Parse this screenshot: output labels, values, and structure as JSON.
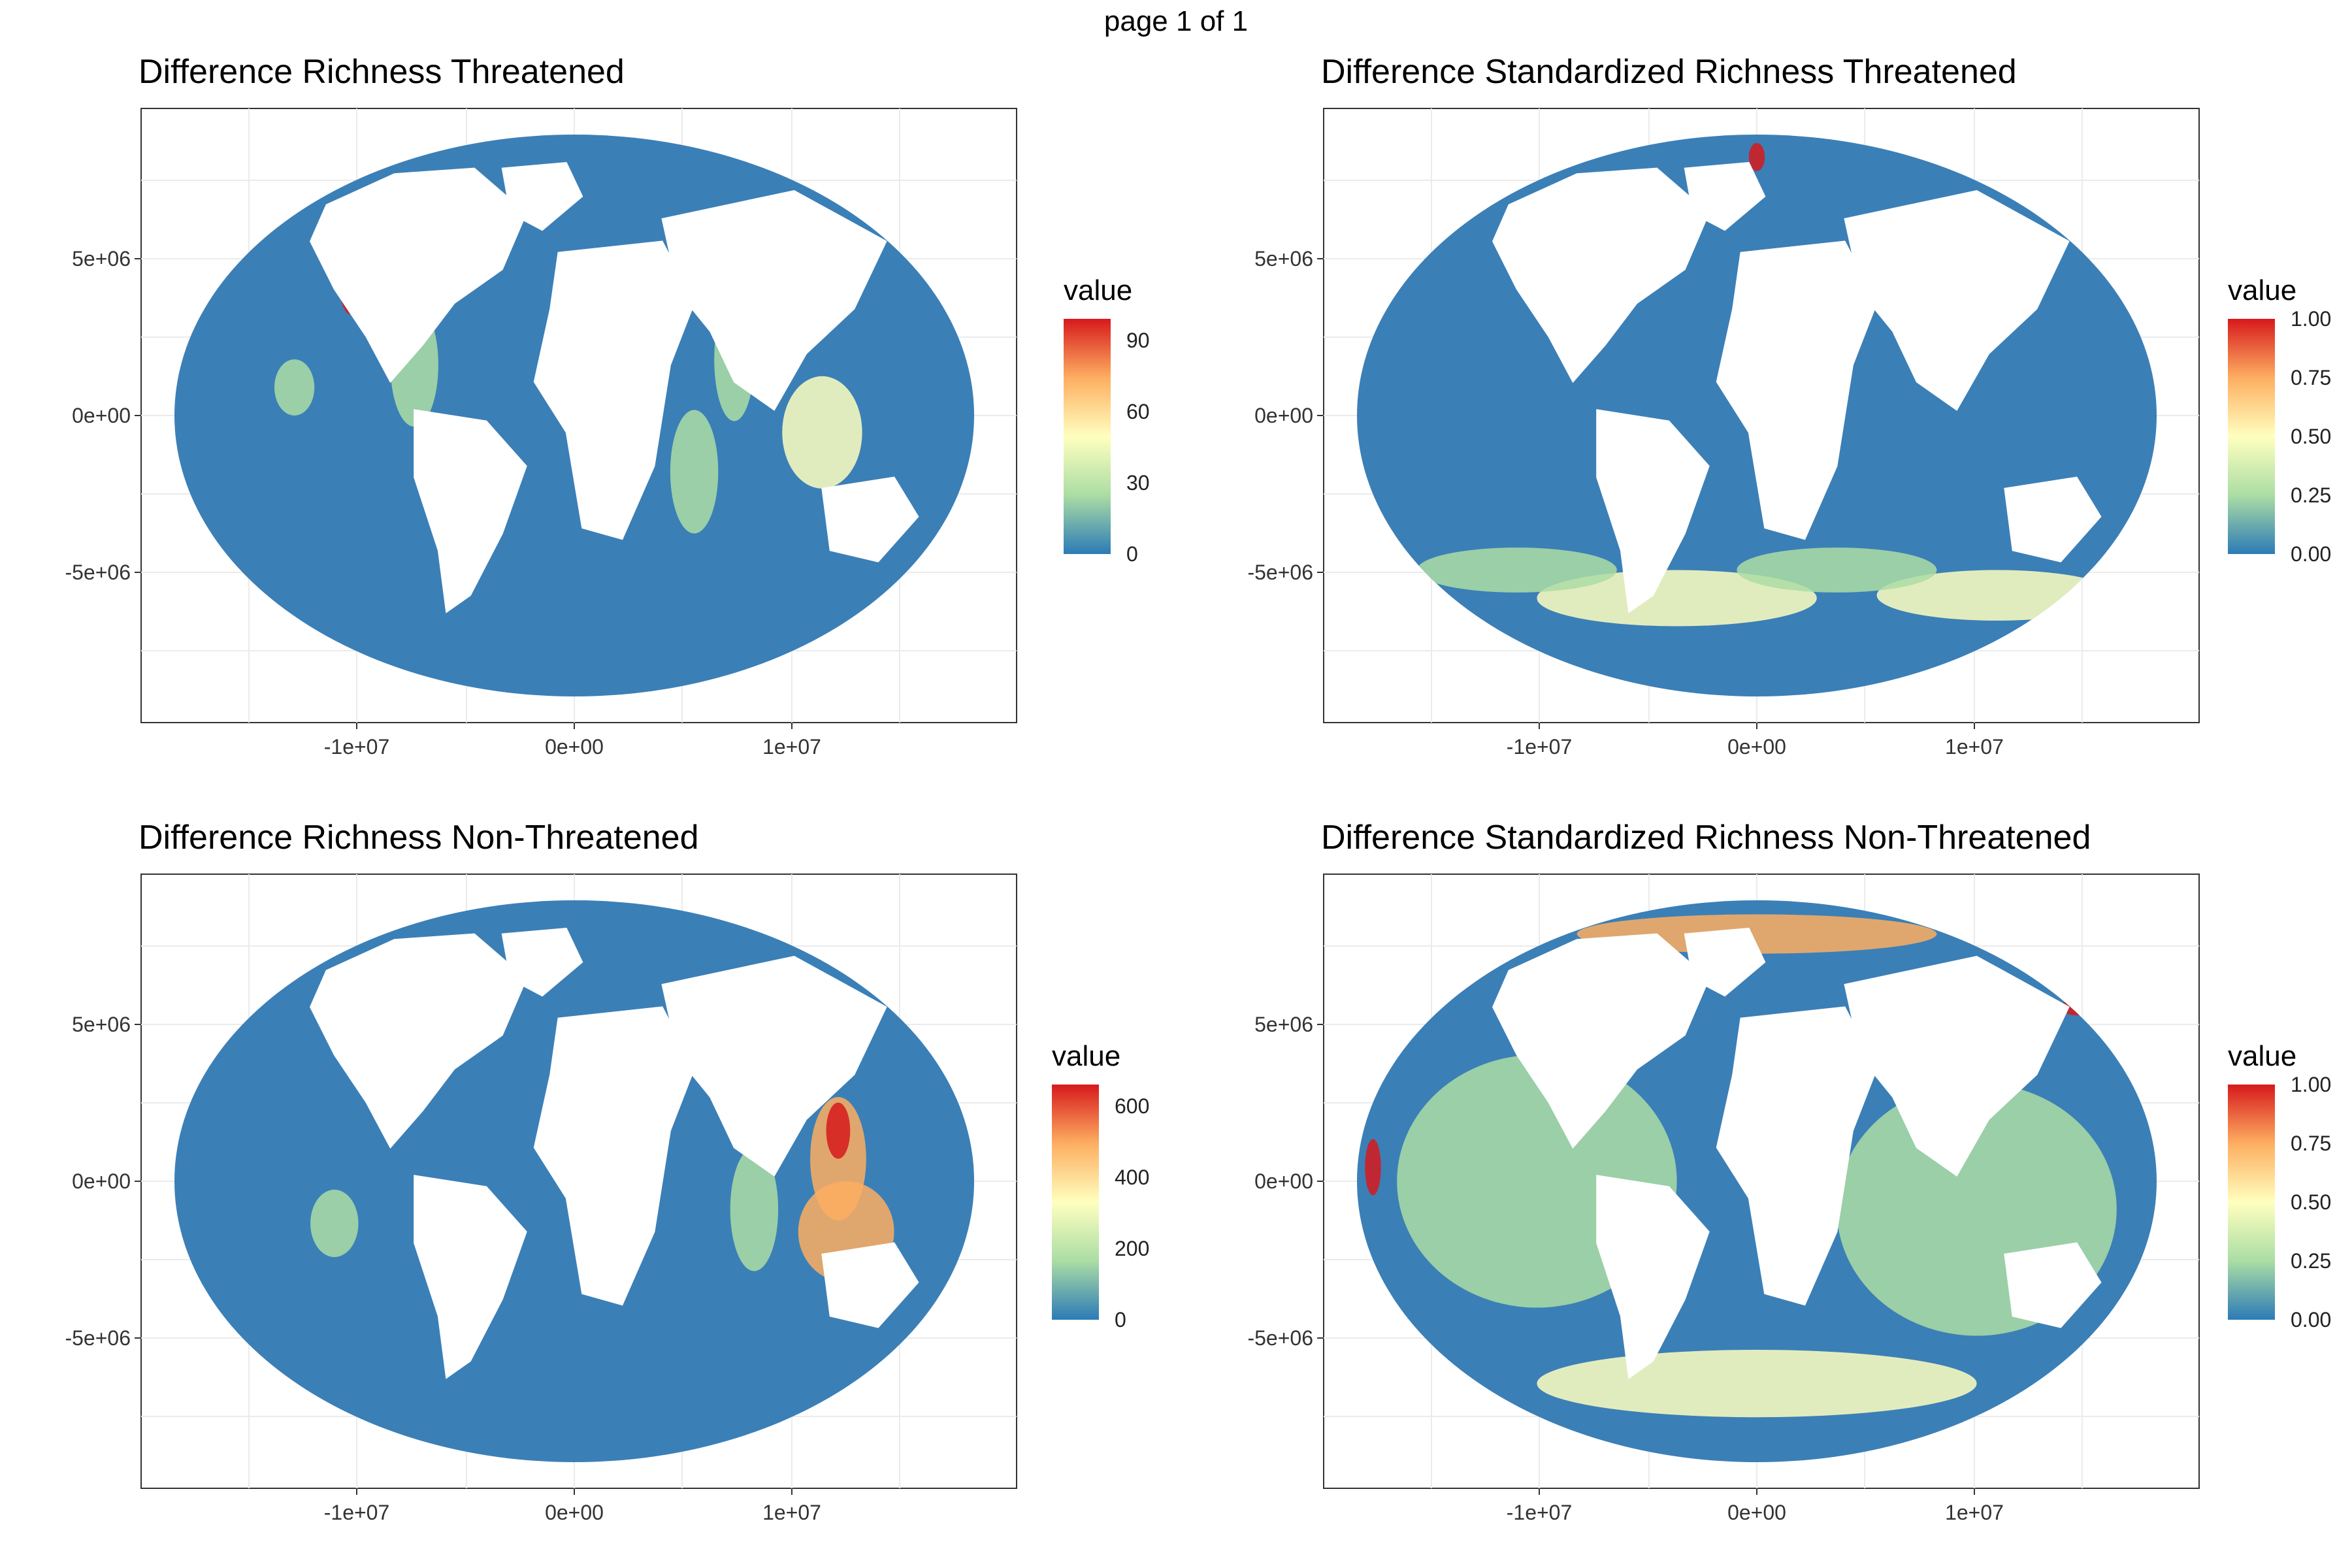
{
  "page_label": "page 1 of 1",
  "colors": {
    "ocean_base": "#3b7fb7",
    "land": "#ffffff",
    "scale": [
      "#2c7bb6",
      "#abdda4",
      "#ffffbf",
      "#fdae61",
      "#d7191c"
    ]
  },
  "panels": [
    {
      "title": "Difference Richness Threatened",
      "x_ticks": [
        "-1e+07",
        "0e+00",
        "1e+07"
      ],
      "y_ticks": [
        "5e+06",
        "0e+00",
        "-5e+06"
      ],
      "legend": {
        "title": "value",
        "labels": [
          "90",
          "60",
          "30",
          "0"
        ]
      }
    },
    {
      "title": "Difference Standardized Richness Threatened",
      "x_ticks": [
        "-1e+07",
        "0e+00",
        "1e+07"
      ],
      "y_ticks": [
        "5e+06",
        "0e+00",
        "-5e+06"
      ],
      "legend": {
        "title": "value",
        "labels": [
          "1.00",
          "0.75",
          "0.50",
          "0.25",
          "0.00"
        ]
      }
    },
    {
      "title": "Difference Richness Non-Threatened",
      "x_ticks": [
        "-1e+07",
        "0e+00",
        "1e+07"
      ],
      "y_ticks": [
        "5e+06",
        "0e+00",
        "-5e+06"
      ],
      "legend": {
        "title": "value",
        "labels": [
          "600",
          "400",
          "200",
          "0"
        ]
      }
    },
    {
      "title": "Difference Standardized Richness Non-Threatened",
      "x_ticks": [
        "-1e+07",
        "0e+00",
        "1e+07"
      ],
      "y_ticks": [
        "5e+06",
        "0e+00",
        "-5e+06"
      ],
      "legend": {
        "title": "value",
        "labels": [
          "1.00",
          "0.75",
          "0.50",
          "0.25",
          "0.00"
        ]
      }
    }
  ]
}
